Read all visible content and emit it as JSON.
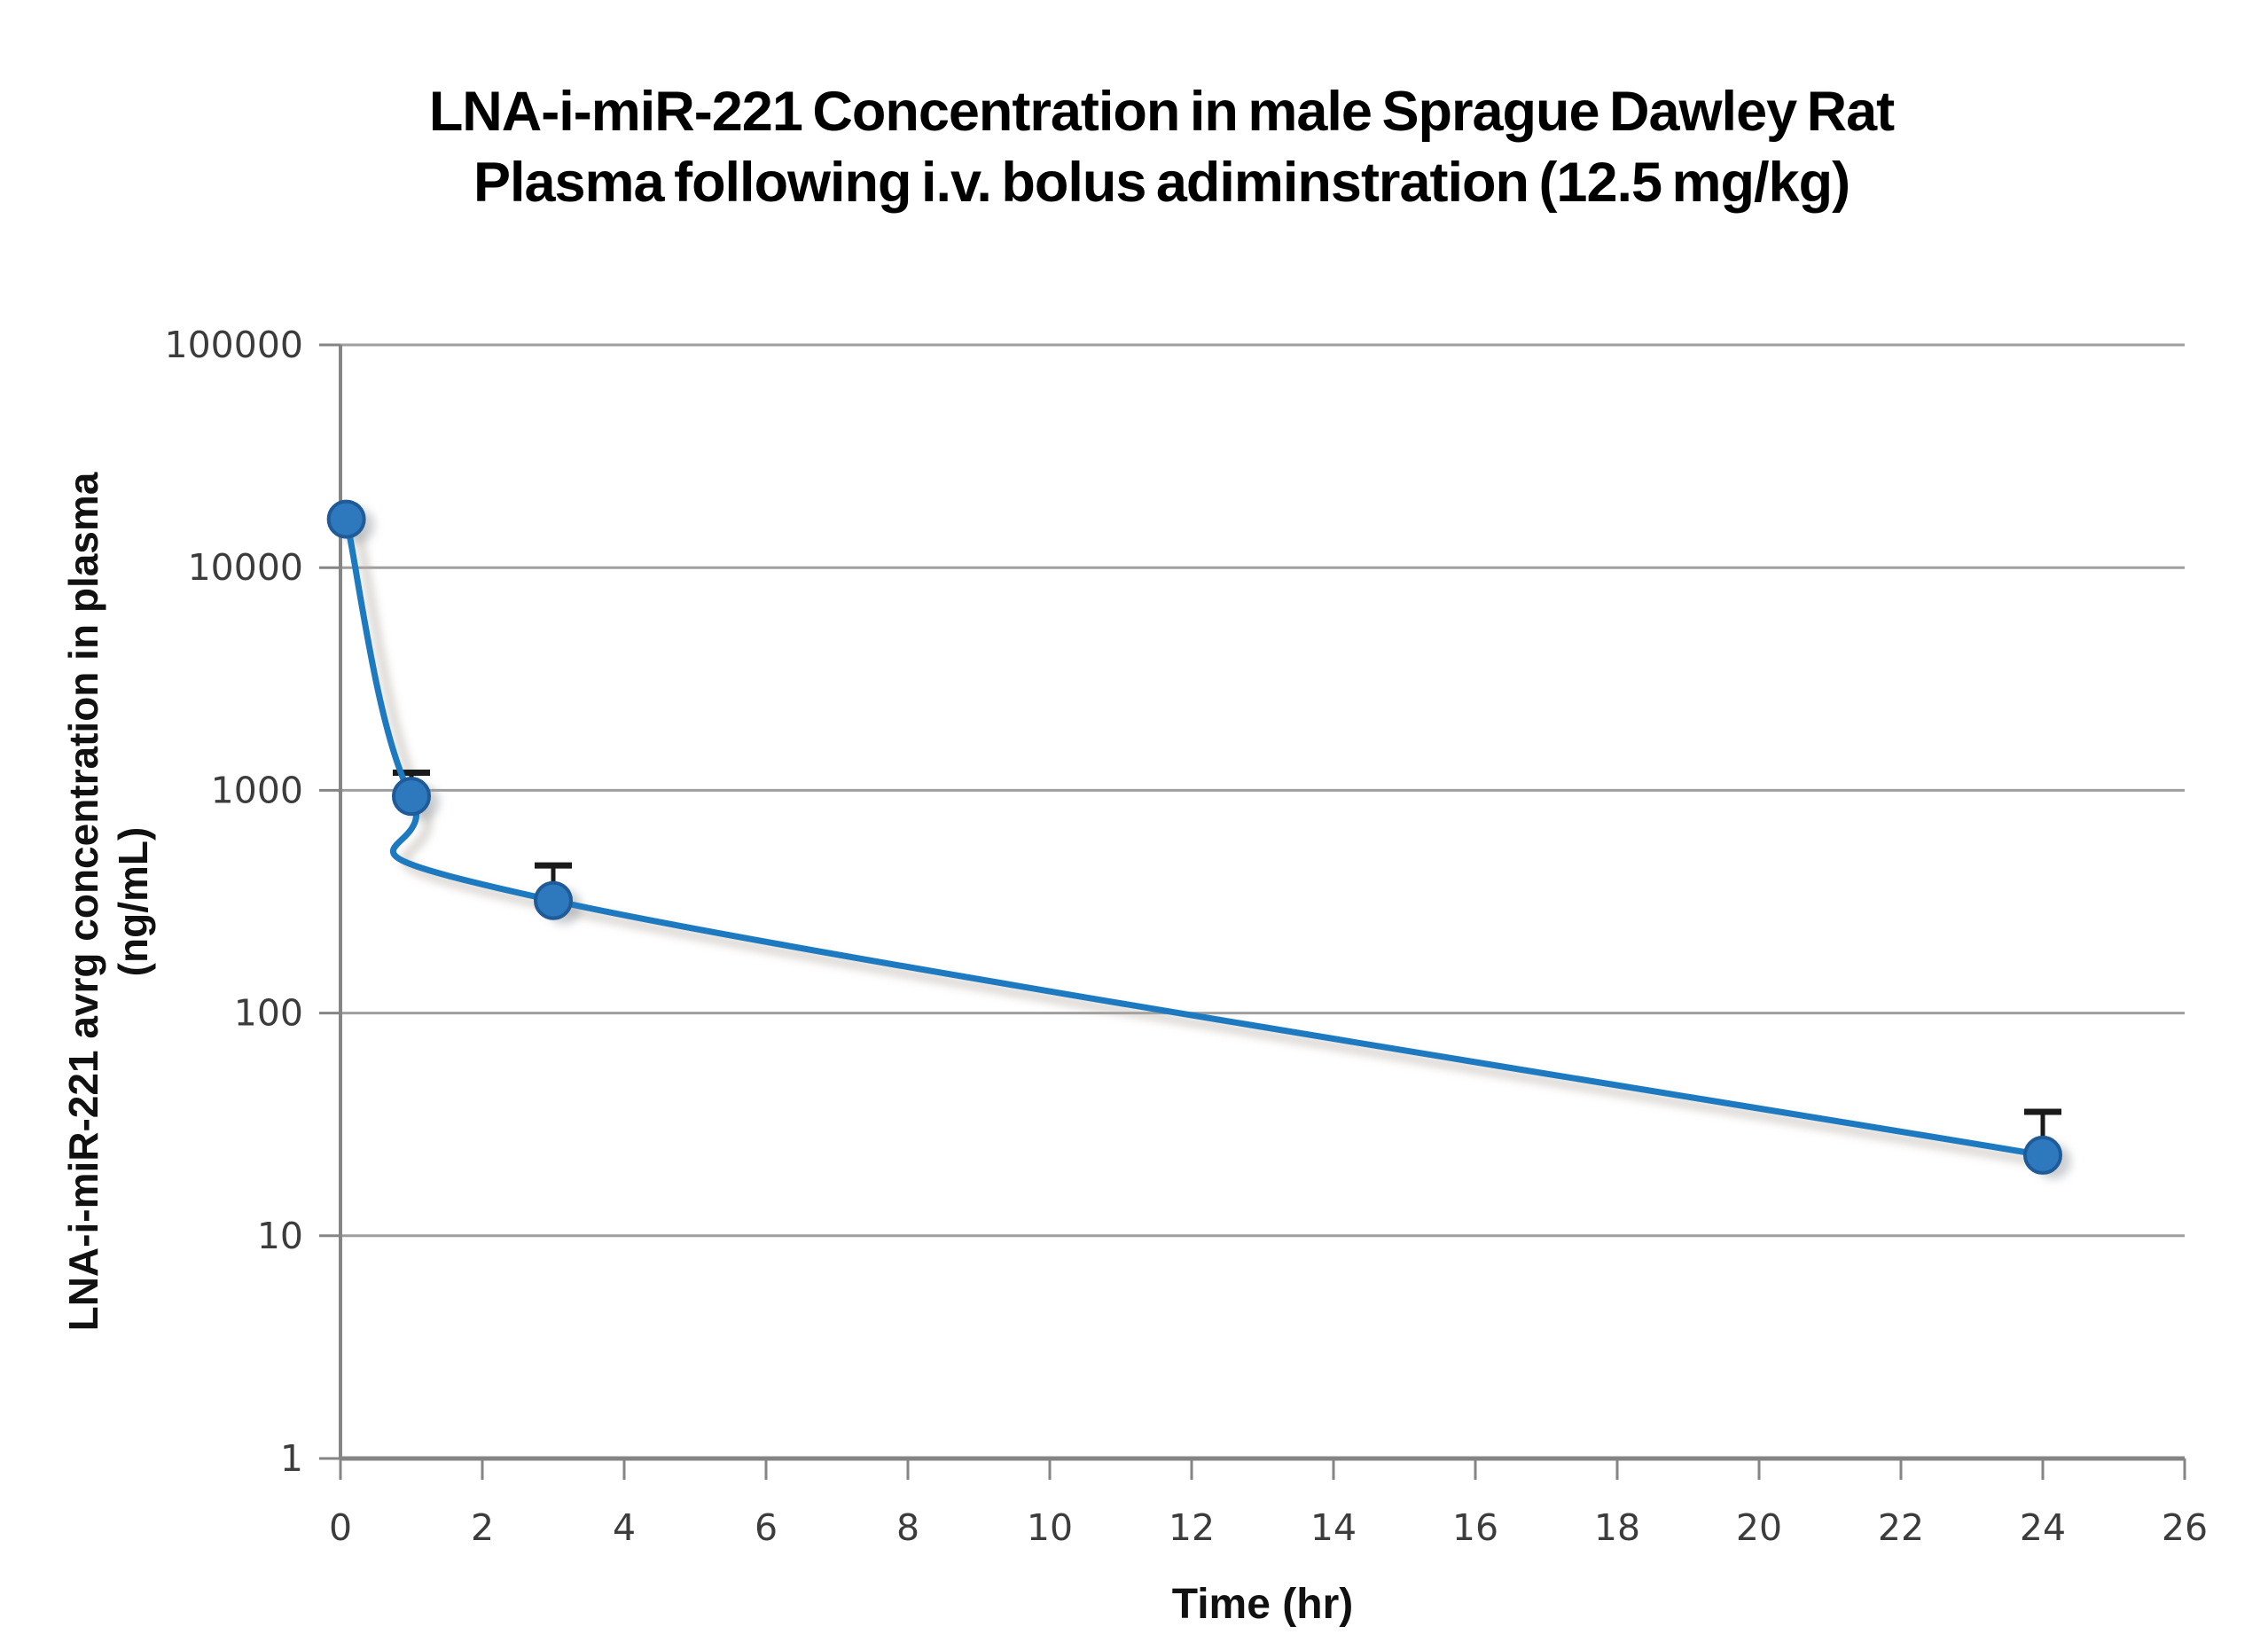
{
  "page": {
    "background": "#ffffff"
  },
  "chart_data": {
    "type": "line",
    "title_lines": [
      "LNA-i-miR-221 Concentration in male Sprague Dawley Rat",
      "Plasma following i.v. bolus adiminstration (12.5 mg/kg)"
    ],
    "xlabel": "Time (hr)",
    "ylabel_lines": [
      "LNA-i-miR-221 avrg concentration in plasma",
      "(ng/mL)"
    ],
    "legend": "none",
    "grid": "horizontal",
    "x_axis": {
      "min": 0,
      "max": 26,
      "tick_values": [
        0,
        2,
        4,
        6,
        8,
        10,
        12,
        14,
        16,
        18,
        20,
        22,
        24,
        26
      ],
      "tick_labels": [
        "0",
        "2",
        "4",
        "6",
        "8",
        "10",
        "12",
        "14",
        "16",
        "18",
        "20",
        "22",
        "24",
        "26"
      ]
    },
    "y_axis": {
      "scale": "log",
      "min": 1,
      "max": 100000,
      "tick_values": [
        1,
        10,
        100,
        1000,
        10000,
        100000
      ],
      "tick_labels": [
        "1",
        "10",
        "100",
        "1000",
        "10000",
        "100000"
      ]
    },
    "series": [
      {
        "points": [
          {
            "time_hr": 0.083,
            "conc_ng_ml": 16500,
            "err_top": null
          },
          {
            "time_hr": 1,
            "conc_ng_ml": 940,
            "err_top": 1200
          },
          {
            "time_hr": 3,
            "conc_ng_ml": 320,
            "err_top": 460
          },
          {
            "time_hr": 24,
            "conc_ng_ml": 23,
            "err_top": 36
          }
        ]
      }
    ],
    "colors": {
      "line": "#1d79c0",
      "marker_fill": "#2e79be",
      "marker_edge": "#1f5b98",
      "error_bar": "#1a1a1a",
      "gridline": "#9e9e9e",
      "axis": "#858585",
      "tick_text": "#3c3c3c",
      "shadow": "#b4aca2"
    }
  }
}
